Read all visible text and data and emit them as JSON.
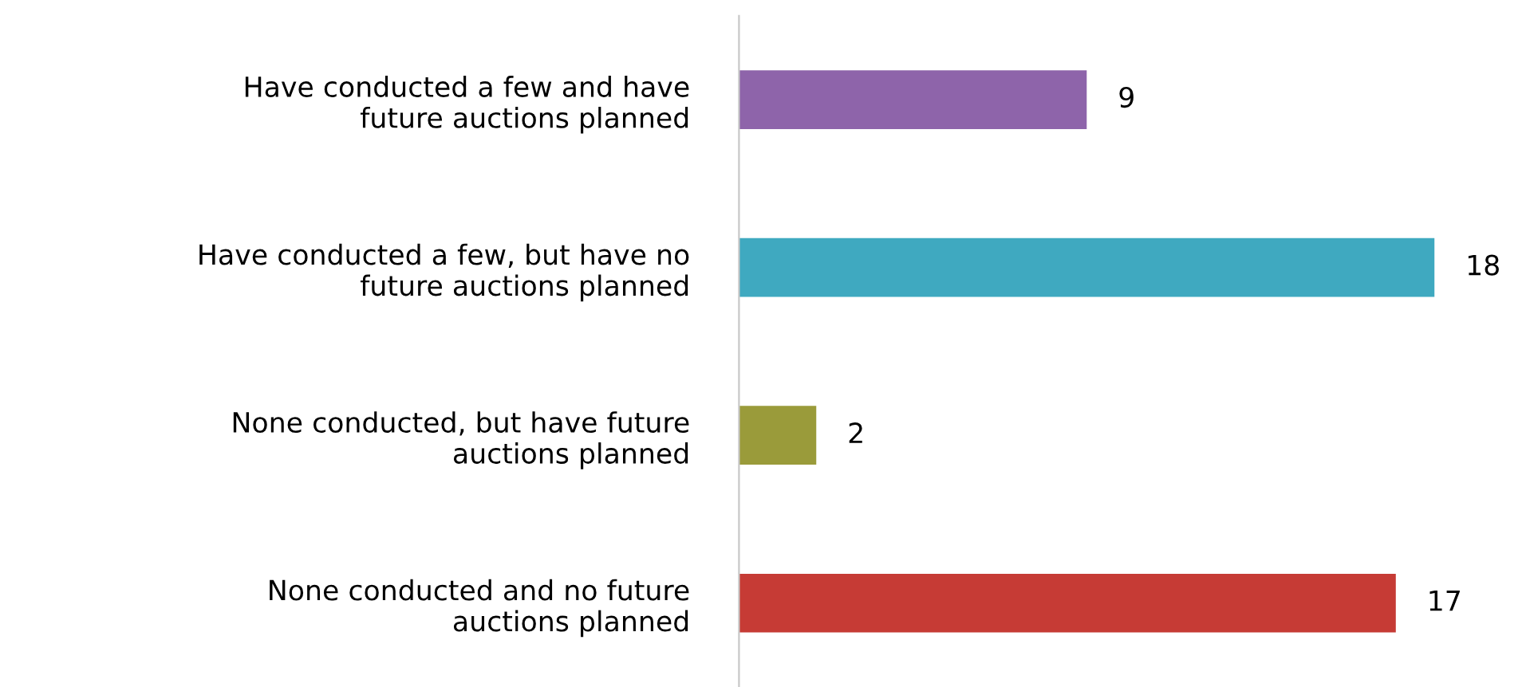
{
  "chart_data": {
    "type": "bar",
    "orientation": "horizontal",
    "categories": [
      "Have conducted a few and have\nfuture auctions planned",
      "Have conducted a few, but have no\nfuture auctions planned",
      "None conducted, but have future\nauctions planned",
      "None conducted and no future\nauctions planned"
    ],
    "values": [
      9,
      18,
      2,
      17
    ],
    "colors": [
      "#8e64aa",
      "#3fa9c0",
      "#9a9b3a",
      "#c63b35"
    ],
    "data_labels": true,
    "grid": false,
    "legend": false
  }
}
